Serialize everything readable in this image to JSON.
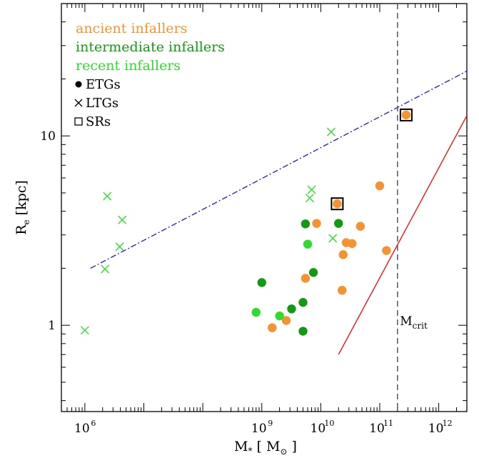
{
  "chart_data": {
    "type": "scatter",
    "title": "",
    "xlabel": {
      "main": "M",
      "sub": "*",
      "unit_open": "[ M",
      "unit_sub": "⊙",
      "unit_close": "]"
    },
    "ylabel": {
      "main": "R",
      "sub": "e",
      "unit": "[kpc]"
    },
    "x_scale": "log",
    "y_scale": "log",
    "xlim": [
      400000,
      3000000000000
    ],
    "ylim": [
      0.35,
      50
    ],
    "x_ticks": [
      {
        "value": 1000000,
        "base": "10",
        "exp": "6"
      },
      {
        "value": 1000000000,
        "base": "10",
        "exp": "9"
      },
      {
        "value": 10000000000,
        "base": "10",
        "exp": "10"
      },
      {
        "value": 100000000000,
        "base": "10",
        "exp": "11"
      },
      {
        "value": 1000000000000,
        "base": "10",
        "exp": "12"
      }
    ],
    "y_ticks": [
      {
        "value": 1,
        "label": "1"
      },
      {
        "value": 10,
        "label": "10"
      }
    ],
    "colors": {
      "ancient": "#f6932e",
      "intermediate": "#129b12",
      "recent": "#2ddc2d",
      "fit_line": "#1a1acc",
      "red_line": "#ff0000",
      "mcrit_line": "#555555"
    },
    "legend": {
      "position": "top-left",
      "groups": [
        {
          "label": "ancient infallers",
          "color": "#f6932e"
        },
        {
          "label": "intermediate infallers",
          "color": "#129b12"
        },
        {
          "label": "recent infallers",
          "color": "#2ddc2d"
        }
      ],
      "markers": [
        {
          "symbol": "circle",
          "label": "ETGs"
        },
        {
          "symbol": "cross",
          "label": "LTGs"
        },
        {
          "symbol": "square",
          "label": "SRs"
        }
      ]
    },
    "series": [
      {
        "name": "ancient infallers",
        "color": "#f6932e",
        "points": [
          {
            "x": 1500000000,
            "y": 0.97,
            "marker": "circle"
          },
          {
            "x": 2600000000,
            "y": 1.06,
            "marker": "circle"
          },
          {
            "x": 5500000000,
            "y": 1.77,
            "marker": "circle"
          },
          {
            "x": 8500000000,
            "y": 3.45,
            "marker": "circle"
          },
          {
            "x": 23000000000,
            "y": 1.53,
            "marker": "circle"
          },
          {
            "x": 24000000000,
            "y": 2.36,
            "marker": "circle"
          },
          {
            "x": 27000000000,
            "y": 2.73,
            "marker": "circle"
          },
          {
            "x": 34000000000,
            "y": 2.7,
            "marker": "circle"
          },
          {
            "x": 47000000000,
            "y": 3.33,
            "marker": "circle"
          },
          {
            "x": 100000000000,
            "y": 5.45,
            "marker": "circle"
          },
          {
            "x": 130000000000,
            "y": 2.48,
            "marker": "circle"
          },
          {
            "x": 19000000000,
            "y": 4.38,
            "marker": "circle_square"
          },
          {
            "x": 280000000000,
            "y": 12.9,
            "marker": "circle_square"
          }
        ]
      },
      {
        "name": "intermediate infallers",
        "color": "#129b12",
        "points": [
          {
            "x": 1000000000,
            "y": 1.68,
            "marker": "circle"
          },
          {
            "x": 3200000000,
            "y": 1.22,
            "marker": "circle"
          },
          {
            "x": 5000000000,
            "y": 1.32,
            "marker": "circle"
          },
          {
            "x": 5000000000,
            "y": 0.93,
            "marker": "circle"
          },
          {
            "x": 5500000000,
            "y": 3.43,
            "marker": "circle"
          },
          {
            "x": 7500000000,
            "y": 1.9,
            "marker": "circle"
          },
          {
            "x": 20000000000,
            "y": 3.45,
            "marker": "circle"
          }
        ]
      },
      {
        "name": "recent infallers",
        "color": "#2ddc2d",
        "points": [
          {
            "x": 800000000,
            "y": 1.17,
            "marker": "circle"
          },
          {
            "x": 2000000000,
            "y": 1.12,
            "marker": "circle"
          },
          {
            "x": 6000000000,
            "y": 2.68,
            "marker": "circle"
          },
          {
            "x": 1000000,
            "y": 0.94,
            "marker": "cross"
          },
          {
            "x": 2200000,
            "y": 1.98,
            "marker": "cross"
          },
          {
            "x": 2400000,
            "y": 4.8,
            "marker": "cross"
          },
          {
            "x": 3900000,
            "y": 2.6,
            "marker": "cross"
          },
          {
            "x": 4300000,
            "y": 3.6,
            "marker": "cross"
          },
          {
            "x": 6500000000,
            "y": 4.7,
            "marker": "cross"
          },
          {
            "x": 7000000000,
            "y": 5.2,
            "marker": "cross"
          },
          {
            "x": 15000000000,
            "y": 10.5,
            "marker": "cross"
          },
          {
            "x": 16000000000,
            "y": 2.88,
            "marker": "cross"
          }
        ]
      }
    ],
    "lines": [
      {
        "style": "dashdot",
        "color": "#1a1acc",
        "points": [
          [
            1250000,
            2.0
          ],
          [
            3000000000000,
            22.0
          ]
        ]
      },
      {
        "style": "solid",
        "color": "#ff0000",
        "points": [
          [
            20000000000,
            0.7
          ],
          [
            3000000000000,
            12.8
          ]
        ]
      }
    ],
    "vlines": [
      {
        "x": 200000000000,
        "style": "dashed",
        "color": "#555555"
      }
    ],
    "annotations": [
      {
        "text_main": "M",
        "text_sub": "crit",
        "x": 220000000000,
        "y": 1.0
      }
    ]
  }
}
